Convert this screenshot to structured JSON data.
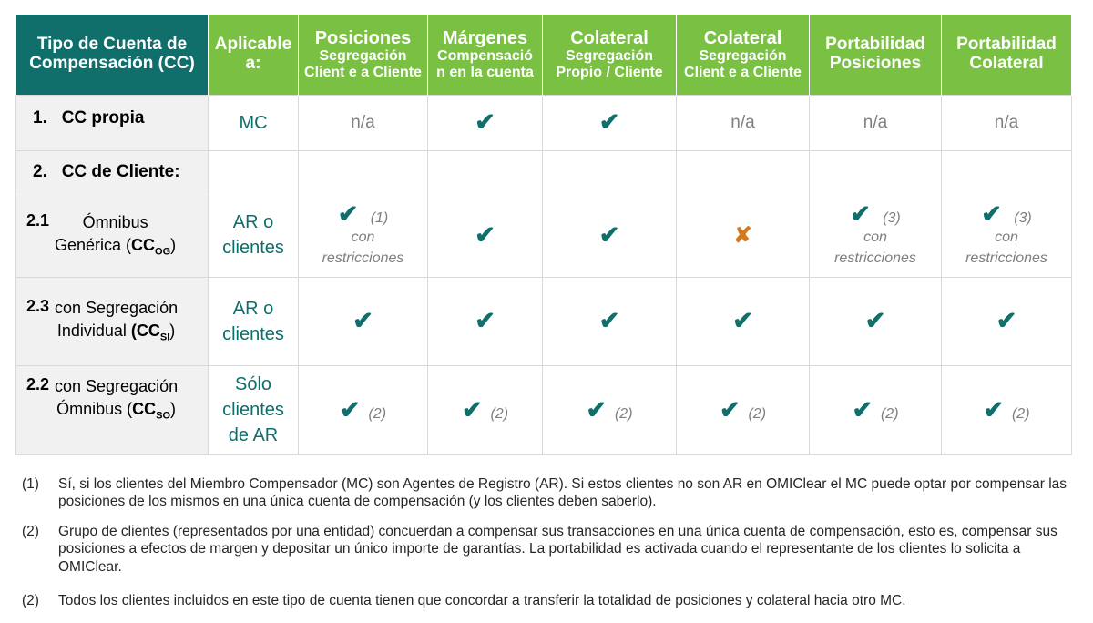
{
  "header": {
    "col0": [
      "Tipo de Cuenta de",
      "Compensación (CC)"
    ],
    "col1": [
      "Aplicable",
      "a:"
    ],
    "col2": {
      "t": "Posiciones",
      "s": [
        "Segregación",
        "Client e a Cliente"
      ]
    },
    "col3": {
      "t": "Márgenes",
      "s": [
        "Compensació",
        "n en la cuenta"
      ]
    },
    "col4": {
      "t": "Colateral",
      "s": [
        "Segregación",
        "Propio / Cliente"
      ]
    },
    "col5": {
      "t": "Colateral",
      "s": [
        "Segregación",
        "Client e a Cliente"
      ]
    },
    "col6": [
      "Portabilidad",
      "Posiciones"
    ],
    "col7": [
      "Portabilidad",
      "Colateral"
    ]
  },
  "rows": {
    "r1": {
      "num": "1.",
      "label": "CC propia",
      "app": "MC",
      "na": "n/a"
    },
    "r2": {
      "num": "2.",
      "label": "CC de Cliente:"
    },
    "r21": {
      "num": "2.1",
      "line1": "Ómnibus",
      "line2": "Genérica (",
      "strong": "CC",
      "sub": "OG",
      "close": ")",
      "app": [
        "AR o",
        "clientes"
      ],
      "note1": "(1)",
      "note3": "(3)",
      "restr": [
        "con",
        "restricciones"
      ]
    },
    "r23": {
      "num": "2.3",
      "line1": "con Segregación",
      "line2": "Individual ",
      "strong": "(CC",
      "sub": "SI",
      "close": ")",
      "app": [
        "AR o",
        "clientes"
      ]
    },
    "r22": {
      "num": "2.2",
      "line1": "con Segregación",
      "line2": "Ómnibus (",
      "strong": "CC",
      "sub": "SO",
      "close": ")",
      "app": [
        "Sólo",
        "clientes",
        "de AR"
      ],
      "note": "(2)"
    }
  },
  "icons": {
    "check": "check-icon",
    "cross": "cross-icon",
    "check_color": "#106e6b",
    "cross_color": "#d17a22"
  },
  "footnotes": [
    {
      "marker": "(1)",
      "text": "Sí, si los clientes del Miembro Compensador (MC) son Agentes de Registro (AR). Si estos clientes no son AR en OMIClear el MC puede optar por compensar las posiciones de los mismos en una única cuenta de compensación (y los clientes deben saberlo)."
    },
    {
      "marker": "(2)",
      "text": "Grupo de clientes (representados por una entidad) concuerdan a compensar sus transacciones en una única cuenta de compensación, esto es, compensar  sus posiciones a efectos de margen y depositar un único importe de garantías. La portabilidad es activada cuando el representante de los clientes lo solicita a OMIClear."
    },
    {
      "marker": "(2)",
      "text": "Todos los clientes incluidos en este tipo de cuenta tienen que concordar a transferir la totalidad de posiciones y colateral hacia otro MC."
    }
  ]
}
